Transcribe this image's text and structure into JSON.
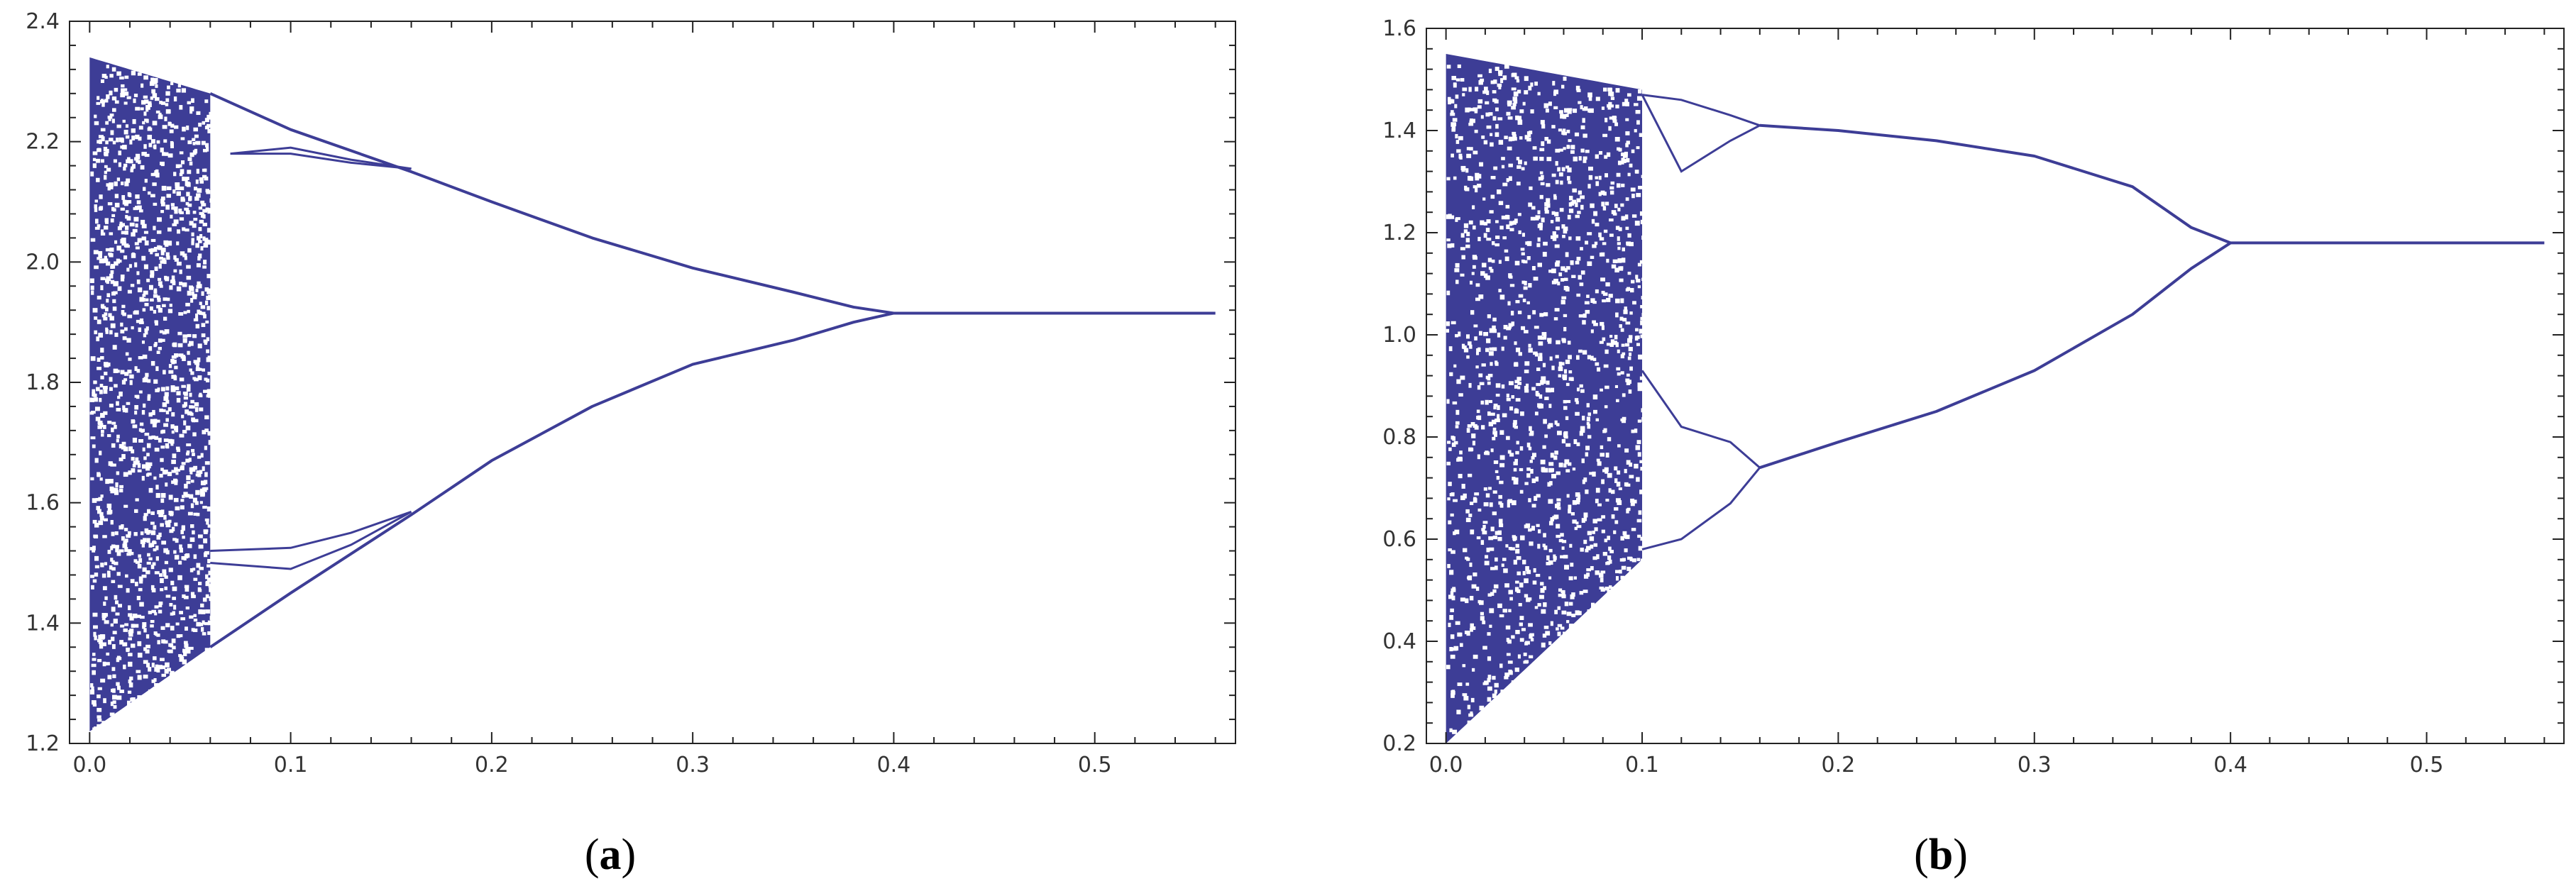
{
  "colors": {
    "series": "#3d3d96",
    "frame": "#222222",
    "text": "#333333"
  },
  "chart_data": [
    {
      "type": "scatter",
      "caption": {
        "open": "(",
        "bold": "a",
        "close": ")"
      },
      "title": "",
      "xlabel": "",
      "ylabel": "",
      "xlim": [
        -0.01,
        0.57
      ],
      "ylim": [
        1.2,
        2.4
      ],
      "xticks": [
        "0.0",
        "0.1",
        "0.2",
        "0.3",
        "0.4",
        "0.5"
      ],
      "yticks": [
        "1.2",
        "1.4",
        "1.6",
        "1.8",
        "2.0",
        "2.2",
        "2.4"
      ],
      "grid": false,
      "series": [
        {
          "kind": "chaotic-band",
          "x_range": [
            0.0,
            0.06
          ],
          "upper": [
            [
              0.0,
              2.34
            ],
            [
              0.06,
              2.28
            ]
          ],
          "lower": [
            [
              0.0,
              1.22
            ],
            [
              0.06,
              1.36
            ]
          ]
        },
        {
          "kind": "bifurcation-branch",
          "points": [
            [
              0.06,
              2.28
            ],
            [
              0.1,
              2.22
            ],
            [
              0.16,
              2.15
            ],
            [
              0.2,
              2.1
            ],
            [
              0.25,
              2.04
            ],
            [
              0.3,
              1.99
            ],
            [
              0.35,
              1.95
            ],
            [
              0.38,
              1.925
            ],
            [
              0.4,
              1.915
            ],
            [
              0.56,
              1.915
            ]
          ]
        },
        {
          "kind": "bifurcation-branch",
          "points": [
            [
              0.06,
              1.36
            ],
            [
              0.1,
              1.45
            ],
            [
              0.16,
              1.58
            ],
            [
              0.2,
              1.67
            ],
            [
              0.25,
              1.76
            ],
            [
              0.3,
              1.83
            ],
            [
              0.35,
              1.87
            ],
            [
              0.38,
              1.9
            ],
            [
              0.4,
              1.915
            ]
          ]
        },
        {
          "kind": "loop",
          "upper": [
            [
              0.07,
              2.18
            ],
            [
              0.1,
              2.19
            ],
            [
              0.13,
              2.17
            ],
            [
              0.16,
              2.155
            ]
          ],
          "lower": [
            [
              0.07,
              2.18
            ],
            [
              0.1,
              2.18
            ],
            [
              0.13,
              2.165
            ],
            [
              0.16,
              2.155
            ]
          ]
        },
        {
          "kind": "loop",
          "upper": [
            [
              0.06,
              1.52
            ],
            [
              0.1,
              1.525
            ],
            [
              0.13,
              1.55
            ],
            [
              0.16,
              1.585
            ]
          ],
          "lower": [
            [
              0.06,
              1.5
            ],
            [
              0.1,
              1.49
            ],
            [
              0.13,
              1.53
            ],
            [
              0.16,
              1.585
            ]
          ]
        }
      ]
    },
    {
      "type": "scatter",
      "caption": {
        "open": "(",
        "bold": "b",
        "close": ")"
      },
      "title": "",
      "xlabel": "",
      "ylabel": "",
      "xlim": [
        -0.01,
        0.57
      ],
      "ylim": [
        0.2,
        1.6
      ],
      "xticks": [
        "0.0",
        "0.1",
        "0.2",
        "0.3",
        "0.4",
        "0.5"
      ],
      "yticks": [
        "0.2",
        "0.4",
        "0.6",
        "0.8",
        "1.0",
        "1.2",
        "1.4",
        "1.6"
      ],
      "grid": false,
      "series": [
        {
          "kind": "chaotic-band",
          "x_range": [
            0.0,
            0.1
          ],
          "upper": [
            [
              0.0,
              1.55
            ],
            [
              0.1,
              1.48
            ]
          ],
          "lower": [
            [
              0.0,
              0.2
            ],
            [
              0.1,
              0.56
            ]
          ]
        },
        {
          "kind": "bifurcation-branch",
          "points": [
            [
              0.16,
              1.41
            ],
            [
              0.2,
              1.4
            ],
            [
              0.25,
              1.38
            ],
            [
              0.3,
              1.35
            ],
            [
              0.35,
              1.29
            ],
            [
              0.38,
              1.21
            ],
            [
              0.4,
              1.18
            ],
            [
              0.56,
              1.18
            ]
          ]
        },
        {
          "kind": "bifurcation-branch",
          "points": [
            [
              0.16,
              0.74
            ],
            [
              0.2,
              0.79
            ],
            [
              0.25,
              0.85
            ],
            [
              0.3,
              0.93
            ],
            [
              0.35,
              1.04
            ],
            [
              0.38,
              1.13
            ],
            [
              0.4,
              1.18
            ]
          ]
        },
        {
          "kind": "loop",
          "upper": [
            [
              0.1,
              1.47
            ],
            [
              0.12,
              1.46
            ],
            [
              0.145,
              1.43
            ],
            [
              0.16,
              1.41
            ]
          ],
          "lower": [
            [
              0.1,
              1.47
            ],
            [
              0.12,
              1.32
            ],
            [
              0.145,
              1.38
            ],
            [
              0.16,
              1.41
            ]
          ]
        },
        {
          "kind": "loop",
          "upper": [
            [
              0.1,
              0.93
            ],
            [
              0.12,
              0.82
            ],
            [
              0.145,
              0.79
            ],
            [
              0.16,
              0.74
            ]
          ],
          "lower": [
            [
              0.1,
              0.58
            ],
            [
              0.12,
              0.6
            ],
            [
              0.145,
              0.67
            ],
            [
              0.16,
              0.74
            ]
          ]
        }
      ]
    }
  ]
}
